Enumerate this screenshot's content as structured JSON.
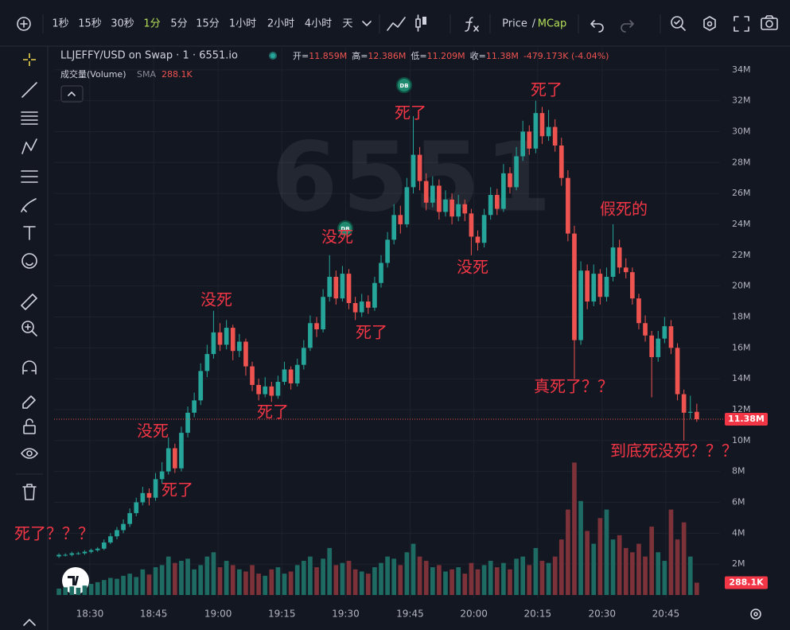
{
  "toolbar": {
    "intervals": [
      "1秒",
      "15秒",
      "30秒",
      "1分",
      "5分",
      "15分",
      "1小时",
      "2小时",
      "4小时",
      "天"
    ],
    "active_interval": 3,
    "price_toggle": [
      "Price",
      "/",
      "MCap"
    ]
  },
  "chart_data": {
    "type": "candlestick",
    "title": "LLJEFFY/USD on Swap · 1 · 6551.io",
    "ohlc": [
      {
        "label": "开=",
        "value": "11.859M"
      },
      {
        "label": "高=",
        "value": "12.386M"
      },
      {
        "label": "低=",
        "value": "11.209M"
      },
      {
        "label": "收=",
        "value": "11.38M"
      }
    ],
    "change": "-479.173K (-4.04%)",
    "volume_title": "成交量(Volume)",
    "volume_indicator": "SMA",
    "last_volume_label": "288.1K",
    "last_price": {
      "value": 11.38,
      "label": "11.38M"
    },
    "watermark": "6551",
    "badges": [
      "DB",
      "DB"
    ],
    "annotations": [
      "死了？？？",
      "没死",
      "死了",
      "没死",
      "死了",
      "没死",
      "死了",
      "死了",
      "没死",
      "死了",
      "假死的",
      "真死了？？",
      "到底死没死？？？"
    ],
    "up_color": "#26a69a",
    "down_color": "#ef5350",
    "volume_up_color": "#1e6b63",
    "volume_down_color": "#7c3238",
    "grid": true,
    "candles": [
      [
        2.5,
        2.7,
        2.4,
        2.6
      ],
      [
        2.6,
        2.7,
        2.5,
        2.6
      ],
      [
        2.6,
        2.8,
        2.5,
        2.7
      ],
      [
        2.7,
        2.8,
        2.6,
        2.7
      ],
      [
        2.7,
        2.9,
        2.6,
        2.8
      ],
      [
        2.8,
        3.0,
        2.7,
        2.9
      ],
      [
        2.9,
        3.1,
        2.8,
        3.0
      ],
      [
        3.0,
        3.6,
        2.9,
        3.4
      ],
      [
        3.4,
        4.0,
        3.3,
        3.8
      ],
      [
        3.8,
        4.4,
        3.6,
        4.2
      ],
      [
        4.2,
        4.9,
        4.0,
        4.6
      ],
      [
        4.6,
        5.6,
        4.4,
        5.3
      ],
      [
        5.3,
        6.3,
        5.1,
        6.0
      ],
      [
        6.0,
        7.0,
        5.8,
        6.6
      ],
      [
        6.6,
        6.9,
        5.8,
        6.3
      ],
      [
        6.3,
        7.9,
        6.1,
        7.5
      ],
      [
        7.5,
        8.6,
        7.2,
        8.0
      ],
      [
        8.0,
        10.2,
        7.8,
        9.5
      ],
      [
        9.5,
        9.8,
        7.9,
        8.2
      ],
      [
        8.2,
        10.9,
        8.0,
        10.5
      ],
      [
        10.5,
        12.2,
        10.2,
        11.8
      ],
      [
        11.8,
        13.1,
        11.5,
        12.6
      ],
      [
        12.6,
        15.0,
        12.3,
        14.5
      ],
      [
        14.5,
        16.2,
        14.1,
        15.6
      ],
      [
        15.6,
        18.4,
        15.3,
        17.0
      ],
      [
        17.0,
        17.6,
        15.8,
        16.2
      ],
      [
        16.2,
        17.8,
        15.9,
        17.3
      ],
      [
        17.3,
        17.5,
        15.2,
        15.8
      ],
      [
        15.8,
        16.9,
        15.4,
        16.4
      ],
      [
        16.4,
        16.6,
        14.2,
        14.8
      ],
      [
        14.8,
        15.1,
        13.2,
        13.6
      ],
      [
        13.6,
        14.0,
        12.6,
        13.0
      ],
      [
        13.0,
        14.1,
        12.8,
        13.5
      ],
      [
        13.5,
        13.8,
        12.5,
        12.9
      ],
      [
        12.9,
        14.2,
        12.7,
        13.8
      ],
      [
        13.8,
        15.1,
        13.6,
        14.6
      ],
      [
        14.6,
        14.8,
        13.3,
        13.7
      ],
      [
        13.7,
        15.3,
        13.5,
        14.9
      ],
      [
        14.9,
        16.5,
        14.6,
        16.0
      ],
      [
        16.0,
        18.1,
        15.8,
        17.6
      ],
      [
        17.6,
        18.0,
        16.7,
        17.2
      ],
      [
        17.2,
        19.8,
        17.0,
        19.3
      ],
      [
        19.3,
        22.0,
        19.0,
        20.6
      ],
      [
        20.6,
        21.0,
        18.8,
        19.2
      ],
      [
        19.2,
        21.3,
        19.0,
        20.8
      ],
      [
        20.8,
        21.1,
        18.5,
        18.9
      ],
      [
        18.9,
        19.3,
        17.8,
        18.3
      ],
      [
        18.3,
        19.5,
        18.0,
        19.0
      ],
      [
        19.0,
        19.4,
        18.2,
        18.6
      ],
      [
        18.6,
        20.6,
        18.4,
        20.2
      ],
      [
        20.2,
        22.0,
        19.9,
        21.5
      ],
      [
        21.5,
        23.5,
        21.2,
        23.0
      ],
      [
        23.0,
        25.3,
        22.7,
        24.6
      ],
      [
        24.6,
        25.2,
        23.4,
        24.0
      ],
      [
        24.0,
        27.0,
        23.8,
        26.4
      ],
      [
        26.4,
        31.0,
        26.0,
        28.5
      ],
      [
        28.5,
        29.0,
        26.2,
        26.8
      ],
      [
        26.8,
        27.3,
        24.9,
        25.4
      ],
      [
        25.4,
        27.1,
        25.1,
        26.5
      ],
      [
        26.5,
        26.9,
        24.3,
        24.8
      ],
      [
        24.8,
        26.2,
        24.5,
        25.6
      ],
      [
        25.6,
        26.0,
        24.0,
        24.5
      ],
      [
        24.5,
        25.9,
        24.2,
        25.3
      ],
      [
        25.3,
        25.6,
        24.2,
        24.7
      ],
      [
        24.7,
        25.0,
        22.0,
        23.2
      ],
      [
        23.2,
        23.6,
        22.3,
        22.8
      ],
      [
        22.8,
        25.0,
        22.5,
        24.6
      ],
      [
        24.6,
        26.4,
        24.3,
        25.9
      ],
      [
        25.9,
        26.3,
        24.6,
        25.0
      ],
      [
        25.0,
        27.9,
        24.8,
        27.3
      ],
      [
        27.3,
        27.7,
        26.0,
        26.4
      ],
      [
        26.4,
        29.0,
        26.2,
        28.4
      ],
      [
        28.4,
        30.7,
        28.1,
        30.0
      ],
      [
        30.0,
        30.4,
        28.5,
        28.9
      ],
      [
        28.9,
        32.0,
        28.6,
        31.2
      ],
      [
        31.2,
        31.6,
        29.2,
        29.7
      ],
      [
        29.7,
        31.4,
        29.4,
        30.3
      ],
      [
        30.3,
        30.8,
        28.7,
        29.1
      ],
      [
        29.1,
        29.6,
        26.5,
        27.0
      ],
      [
        27.0,
        27.5,
        22.9,
        23.4
      ],
      [
        23.4,
        23.9,
        14.0,
        16.5
      ],
      [
        16.5,
        21.6,
        16.2,
        21.0
      ],
      [
        21.0,
        21.4,
        18.5,
        19.0
      ],
      [
        19.0,
        21.4,
        18.7,
        20.8
      ],
      [
        20.8,
        21.1,
        18.8,
        19.3
      ],
      [
        19.3,
        21.2,
        19.0,
        20.6
      ],
      [
        20.6,
        24.0,
        20.3,
        22.5
      ],
      [
        22.5,
        23.0,
        20.8,
        21.2
      ],
      [
        21.2,
        21.8,
        20.5,
        20.9
      ],
      [
        20.9,
        21.2,
        18.8,
        19.2
      ],
      [
        19.2,
        19.5,
        17.2,
        17.6
      ],
      [
        17.6,
        18.1,
        16.4,
        16.8
      ],
      [
        16.8,
        17.1,
        12.8,
        15.4
      ],
      [
        15.4,
        17.1,
        15.1,
        16.6
      ],
      [
        16.6,
        18.0,
        16.3,
        17.4
      ],
      [
        17.4,
        17.8,
        15.6,
        16.0
      ],
      [
        16.0,
        16.3,
        12.6,
        13.0
      ],
      [
        13.0,
        13.3,
        10.0,
        11.8
      ],
      [
        11.8,
        12.9,
        11.4,
        11.859
      ],
      [
        11.859,
        12.386,
        11.209,
        11.38
      ]
    ],
    "volumes": [
      150,
      180,
      200,
      170,
      220,
      260,
      300,
      350,
      400,
      380,
      450,
      500,
      420,
      600,
      480,
      650,
      700,
      900,
      750,
      800,
      850,
      600,
      700,
      900,
      1000,
      650,
      800,
      700,
      600,
      550,
      700,
      500,
      450,
      600,
      650,
      500,
      550,
      700,
      800,
      900,
      650,
      850,
      1100,
      700,
      750,
      800,
      600,
      550,
      500,
      650,
      750,
      900,
      850,
      700,
      1000,
      1200,
      900,
      800,
      650,
      700,
      550,
      600,
      650,
      500,
      750,
      600,
      700,
      800,
      650,
      750,
      600,
      850,
      900,
      700,
      1100,
      800,
      750,
      900,
      1300,
      2000,
      3100,
      2200,
      1500,
      1200,
      1800,
      2000,
      1300,
      1400,
      1100,
      1000,
      1200,
      900,
      1600,
      1000,
      800,
      2000,
      1300,
      1700,
      900,
      288.1
    ],
    "xlim": [
      -0.75,
      102.6
    ],
    "xticks": [
      {
        "value": 4.8,
        "label": "18:30"
      },
      {
        "value": 14.7,
        "label": "18:45"
      },
      {
        "value": 24.7,
        "label": "19:00"
      },
      {
        "value": 34.6,
        "label": "19:15"
      },
      {
        "value": 44.5,
        "label": "19:30"
      },
      {
        "value": 54.5,
        "label": "19:45"
      },
      {
        "value": 64.4,
        "label": "20:00"
      },
      {
        "value": 74.3,
        "label": "20:15"
      },
      {
        "value": 84.3,
        "label": "20:30"
      },
      {
        "value": 94.2,
        "label": "20:45"
      }
    ],
    "ylim": [
      0,
      34.4
    ],
    "yticks": [
      {
        "value": 2,
        "label": "2M"
      },
      {
        "value": 4,
        "label": "4M"
      },
      {
        "value": 6,
        "label": "6M"
      },
      {
        "value": 8,
        "label": "8M"
      },
      {
        "value": 10,
        "label": "10M"
      },
      {
        "value": 12,
        "label": "12M"
      },
      {
        "value": 14,
        "label": "14M"
      },
      {
        "value": 16,
        "label": "16M"
      },
      {
        "value": 18,
        "label": "18M"
      },
      {
        "value": 20,
        "label": "20M"
      },
      {
        "value": 22,
        "label": "22M"
      },
      {
        "value": 24,
        "label": "24M"
      },
      {
        "value": 26,
        "label": "26M"
      },
      {
        "value": 28,
        "label": "28M"
      },
      {
        "value": 30,
        "label": "30M"
      },
      {
        "value": 32,
        "label": "32M"
      },
      {
        "value": 34,
        "label": "34M"
      }
    ],
    "y2lim": [
      0,
      3500
    ]
  }
}
